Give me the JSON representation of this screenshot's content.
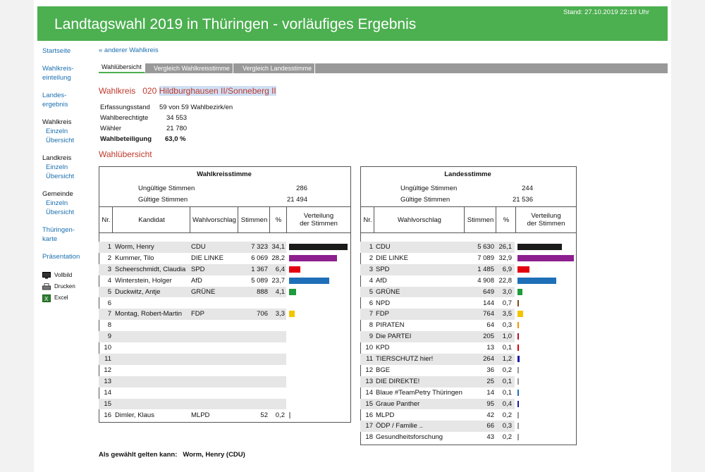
{
  "header": {
    "title": "Landtagswahl 2019 in Thüringen - vorläufiges Ergebnis",
    "stand": "Stand: 27.10.2019 22:19 Uhr"
  },
  "nav": {
    "startseite": "Startseite",
    "wahlkreiseinteilung_1": "Wahlkreis-",
    "wahlkreiseinteilung_2": "einteilung",
    "landesergebnis_1": "Landes-",
    "landesergebnis_2": "ergebnis",
    "wahlkreis": "Wahlkreis",
    "einzeln": "Einzeln",
    "uebersicht": "Übersicht",
    "landkreis": "Landkreis",
    "gemeinde": "Gemeinde",
    "thueringenkarte_1": "Thüringen-",
    "thueringenkarte_2": "karte",
    "praesentation": "Präsentation",
    "vollbild": "Vollbild",
    "drucken": "Drucken",
    "excel": "Excel"
  },
  "main": {
    "back": "« anderer Wahlkreis",
    "tabs": [
      "Wahlübersicht",
      "Vergleich Wahlkreisstimme",
      "Vergleich Landesstimme"
    ],
    "wahlkreis_label": "Wahlkreis",
    "wahlkreis_nr": "020",
    "wahlkreis_name": "Hildburghausen II/Sonneberg II",
    "info": [
      {
        "k": "Erfassungsstand",
        "v": "59 von 59 Wahlbezirk/en"
      },
      {
        "k": "Wahlberechtigte",
        "v": "34 553"
      },
      {
        "k": "Wähler",
        "v": "21 780"
      },
      {
        "k": "Wahlbeteiligung",
        "v": "63,0  %"
      }
    ],
    "section_title": "Wahlübersicht",
    "elected_label": "Als gewählt gelten kann:",
    "elected_value": "Worm, Henry (CDU)"
  },
  "left_table": {
    "title": "Wahlkreisstimme",
    "ungueltig_label": "Ungültige Stimmen",
    "ungueltig": "286",
    "gueltig_label": "Gültige Stimmen",
    "gueltig": "21 494",
    "headers": {
      "nr": "Nr.",
      "kandidat": "Kandidat",
      "wv": "Wahlvorschlag",
      "stimmen": "Stimmen",
      "pct": "%",
      "vert_1": "Verteilung",
      "vert_2": "der Stimmen"
    },
    "rows": [
      {
        "nr": "1",
        "kandidat": "Worm, Henry",
        "wv": "CDU",
        "stimmen": "7 323",
        "pct": "34,1",
        "value": 34.1,
        "color": "#1a1a1a"
      },
      {
        "nr": "2",
        "kandidat": "Kummer, Tilo",
        "wv": "DIE LINKE",
        "stimmen": "6 069",
        "pct": "28,2",
        "value": 28.2,
        "color": "#8e1f8f"
      },
      {
        "nr": "3",
        "kandidat": "Scheerschmidt, Claudia",
        "wv": "SPD",
        "stimmen": "1 367",
        "pct": "6,4",
        "value": 6.4,
        "color": "#e3000f"
      },
      {
        "nr": "4",
        "kandidat": "Winterstein, Holger",
        "wv": "AfD",
        "stimmen": "5 089",
        "pct": "23,7",
        "value": 23.7,
        "color": "#1f6fb8"
      },
      {
        "nr": "5",
        "kandidat": "Duckwitz, Antje",
        "wv": "GRÜNE",
        "stimmen": "888",
        "pct": "4,1",
        "value": 4.1,
        "color": "#1e9b3c"
      },
      {
        "nr": "6",
        "kandidat": "",
        "wv": "",
        "stimmen": "",
        "pct": "",
        "value": 0,
        "color": "#999"
      },
      {
        "nr": "7",
        "kandidat": "Montag, Robert-Martin",
        "wv": "FDP",
        "stimmen": "706",
        "pct": "3,3",
        "value": 3.3,
        "color": "#f2c500"
      },
      {
        "nr": "8",
        "kandidat": "",
        "wv": "",
        "stimmen": "",
        "pct": "",
        "value": 0,
        "color": "#999"
      },
      {
        "nr": "9",
        "kandidat": "",
        "wv": "",
        "stimmen": "",
        "pct": "",
        "value": 0,
        "color": "#999"
      },
      {
        "nr": "10",
        "kandidat": "",
        "wv": "",
        "stimmen": "",
        "pct": "",
        "value": 0,
        "color": "#999"
      },
      {
        "nr": "11",
        "kandidat": "",
        "wv": "",
        "stimmen": "",
        "pct": "",
        "value": 0,
        "color": "#999"
      },
      {
        "nr": "12",
        "kandidat": "",
        "wv": "",
        "stimmen": "",
        "pct": "",
        "value": 0,
        "color": "#999"
      },
      {
        "nr": "13",
        "kandidat": "",
        "wv": "",
        "stimmen": "",
        "pct": "",
        "value": 0,
        "color": "#999"
      },
      {
        "nr": "14",
        "kandidat": "",
        "wv": "",
        "stimmen": "",
        "pct": "",
        "value": 0,
        "color": "#999"
      },
      {
        "nr": "15",
        "kandidat": "",
        "wv": "",
        "stimmen": "",
        "pct": "",
        "value": 0,
        "color": "#999"
      },
      {
        "nr": "16",
        "kandidat": "Dimler, Klaus",
        "wv": "MLPD",
        "stimmen": "52",
        "pct": "0,2",
        "value": 0.2,
        "color": "#999"
      }
    ]
  },
  "right_table": {
    "title": "Landesstimme",
    "ungueltig_label": "Ungültige Stimmen",
    "ungueltig": "244",
    "gueltig_label": "Gültige Stimmen",
    "gueltig": "21 536",
    "headers": {
      "nr": "Nr.",
      "wv": "Wahlvorschlag",
      "stimmen": "Stimmen",
      "pct": "%",
      "vert_1": "Verteilung",
      "vert_2": "der Stimmen"
    },
    "rows": [
      {
        "nr": "1",
        "wv": "CDU",
        "stimmen": "5 630",
        "pct": "26,1",
        "value": 26.1,
        "color": "#1a1a1a"
      },
      {
        "nr": "2",
        "wv": "DIE LINKE",
        "stimmen": "7 089",
        "pct": "32,9",
        "value": 32.9,
        "color": "#8e1f8f"
      },
      {
        "nr": "3",
        "wv": "SPD",
        "stimmen": "1 485",
        "pct": "6,9",
        "value": 6.9,
        "color": "#e3000f"
      },
      {
        "nr": "4",
        "wv": "AfD",
        "stimmen": "4 908",
        "pct": "22,8",
        "value": 22.8,
        "color": "#1f6fb8"
      },
      {
        "nr": "5",
        "wv": "GRÜNE",
        "stimmen": "649",
        "pct": "3,0",
        "value": 3.0,
        "color": "#1e9b3c"
      },
      {
        "nr": "6",
        "wv": "NPD",
        "stimmen": "144",
        "pct": "0,7",
        "value": 0.7,
        "color": "#7a4a1a"
      },
      {
        "nr": "7",
        "wv": "FDP",
        "stimmen": "764",
        "pct": "3,5",
        "value": 3.5,
        "color": "#f2c500"
      },
      {
        "nr": "8",
        "wv": "PIRATEN",
        "stimmen": "64",
        "pct": "0,3",
        "value": 0.3,
        "color": "#f39200"
      },
      {
        "nr": "9",
        "wv": "Die PARTEI",
        "stimmen": "205",
        "pct": "1,0",
        "value": 1.0,
        "color": "#b5152b"
      },
      {
        "nr": "10",
        "wv": "KPD",
        "stimmen": "13",
        "pct": "0,1",
        "value": 0.1,
        "color": "#c00"
      },
      {
        "nr": "11",
        "wv": "TIERSCHUTZ hier!",
        "stimmen": "264",
        "pct": "1,2",
        "value": 1.2,
        "color": "#1a1aa8"
      },
      {
        "nr": "12",
        "wv": "BGE",
        "stimmen": "36",
        "pct": "0,2",
        "value": 0.2,
        "color": "#999"
      },
      {
        "nr": "13",
        "wv": "DIE DIREKTE!",
        "stimmen": "25",
        "pct": "0,1",
        "value": 0.1,
        "color": "#999"
      },
      {
        "nr": "14",
        "wv": "Blaue #TeamPetry Thüringen",
        "stimmen": "14",
        "pct": "0,1",
        "value": 0.1,
        "color": "#1f6fb8"
      },
      {
        "nr": "15",
        "wv": "Graue Panther",
        "stimmen": "95",
        "pct": "0,4",
        "value": 0.4,
        "color": "#1a1aa8"
      },
      {
        "nr": "16",
        "wv": "MLPD",
        "stimmen": "42",
        "pct": "0,2",
        "value": 0.2,
        "color": "#999"
      },
      {
        "nr": "17",
        "wv": "ÖDP / Familie ..",
        "stimmen": "66",
        "pct": "0,3",
        "value": 0.3,
        "color": "#999"
      },
      {
        "nr": "18",
        "wv": "Gesundheitsforschung",
        "stimmen": "43",
        "pct": "0,2",
        "value": 0.2,
        "color": "#999"
      }
    ]
  }
}
